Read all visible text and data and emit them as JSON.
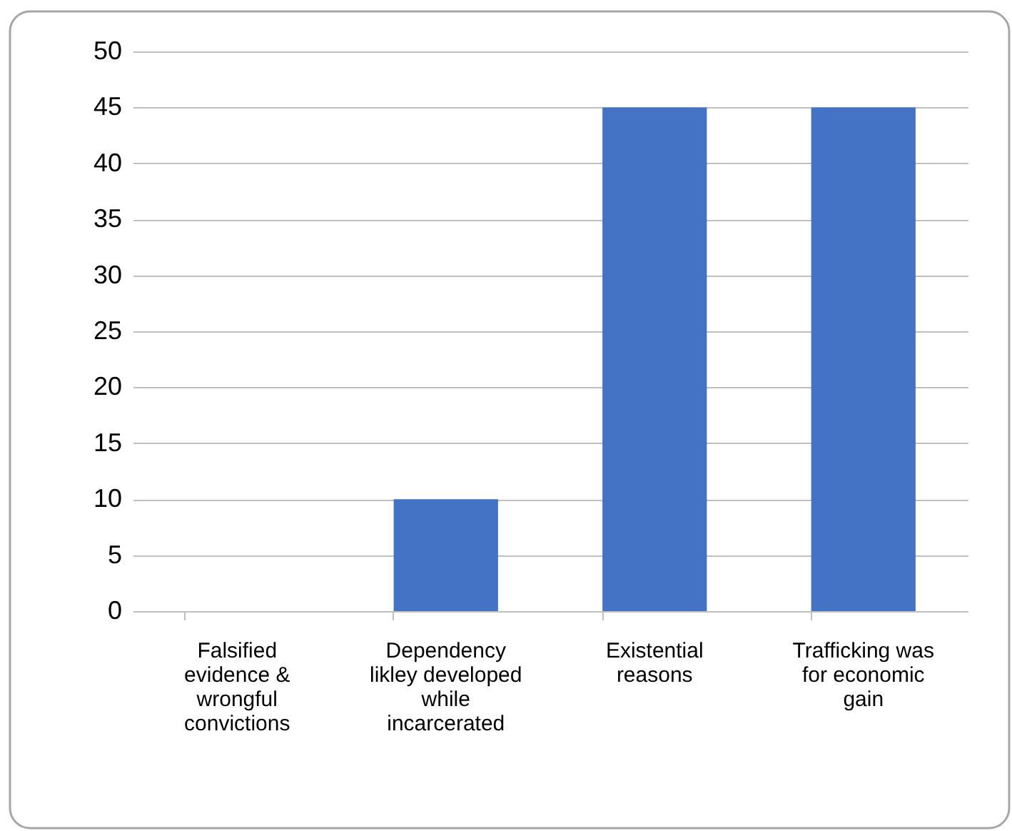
{
  "chart_data": {
    "type": "bar",
    "categories": [
      "Falsified evidence & wrongful convictions",
      "Dependency likley developed while incarcerated",
      "Existential reasons",
      "Trafficking was for economic gain"
    ],
    "values": [
      0,
      10,
      45,
      45
    ],
    "color": "#4472c4",
    "ylim": [
      0,
      50
    ],
    "yticks": [
      0,
      5,
      10,
      15,
      20,
      25,
      30,
      35,
      40,
      45,
      50
    ],
    "grid": "y"
  }
}
